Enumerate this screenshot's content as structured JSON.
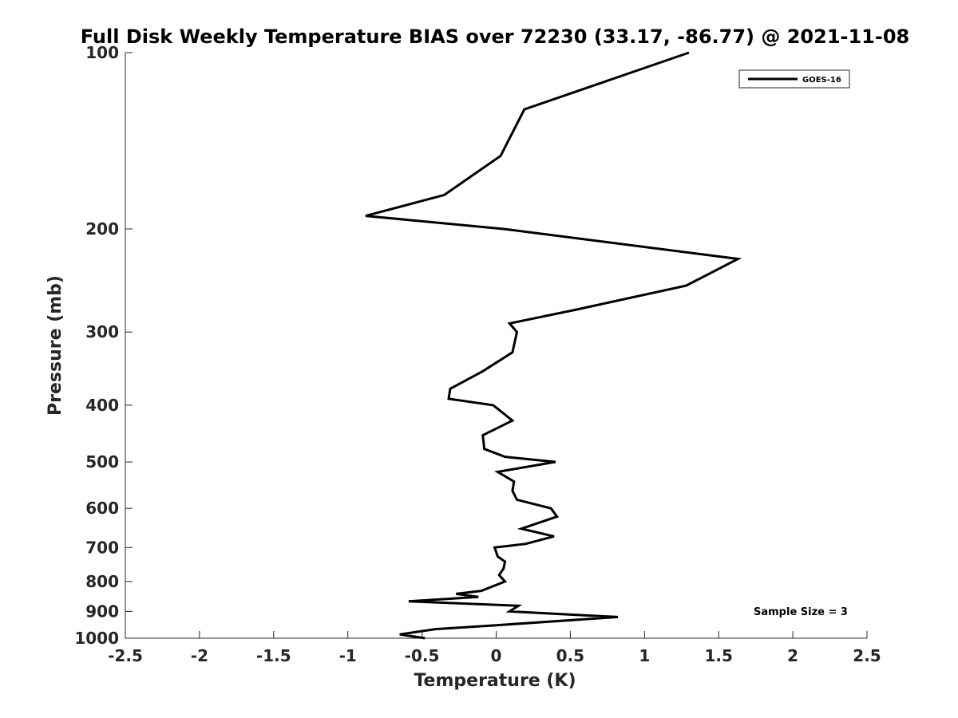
{
  "chart_data": {
    "type": "line",
    "title": "Full Disk Weekly Temperature BIAS over 72230 (33.17, -86.77) @ 2021-11-08",
    "xlabel": "Temperature (K)",
    "ylabel": "Pressure (mb)",
    "xlim": [
      -2.5,
      2.5
    ],
    "ylim": [
      100,
      1000
    ],
    "y_scale": "log",
    "y_reversed": true,
    "grid": false,
    "legend_position": "top-right",
    "x_ticks": [
      "-2.5",
      "-2",
      "-1.5",
      "-1",
      "-0.5",
      "0",
      "0.5",
      "1",
      "1.5",
      "2",
      "2.5"
    ],
    "y_ticks": [
      "100",
      "200",
      "300",
      "400",
      "500",
      "600",
      "700",
      "800",
      "900",
      "1000"
    ],
    "annotation": "Sample Size = 3",
    "series": [
      {
        "name": "GOES-16",
        "color": "#000000",
        "points": [
          [
            1.3,
            100
          ],
          [
            0.19,
            125
          ],
          [
            0.03,
            150
          ],
          [
            -0.35,
            175
          ],
          [
            -0.88,
            190
          ],
          [
            0.05,
            200
          ],
          [
            1.63,
            225
          ],
          [
            1.28,
            250
          ],
          [
            0.53,
            275
          ],
          [
            0.09,
            290
          ],
          [
            0.14,
            300
          ],
          [
            0.11,
            325
          ],
          [
            -0.09,
            350
          ],
          [
            -0.31,
            375
          ],
          [
            -0.32,
            390
          ],
          [
            -0.02,
            400
          ],
          [
            0.11,
            425
          ],
          [
            -0.09,
            450
          ],
          [
            -0.08,
            475
          ],
          [
            0.06,
            490
          ],
          [
            0.4,
            500
          ],
          [
            0.01,
            520
          ],
          [
            0.12,
            540
          ],
          [
            0.11,
            560
          ],
          [
            0.14,
            580
          ],
          [
            0.37,
            600
          ],
          [
            0.41,
            620
          ],
          [
            0.17,
            650
          ],
          [
            0.39,
            670
          ],
          [
            0.2,
            690
          ],
          [
            -0.01,
            700
          ],
          [
            0.01,
            725
          ],
          [
            0.06,
            740
          ],
          [
            0.05,
            760
          ],
          [
            0.02,
            780
          ],
          [
            0.06,
            800
          ],
          [
            -0.1,
            830
          ],
          [
            -0.27,
            840
          ],
          [
            -0.12,
            850
          ],
          [
            -0.59,
            865
          ],
          [
            0.15,
            880
          ],
          [
            0.09,
            900
          ],
          [
            0.82,
            920
          ],
          [
            0.01,
            950
          ],
          [
            -0.41,
            965
          ],
          [
            -0.65,
            985
          ],
          [
            -0.48,
            1000
          ]
        ]
      }
    ]
  }
}
